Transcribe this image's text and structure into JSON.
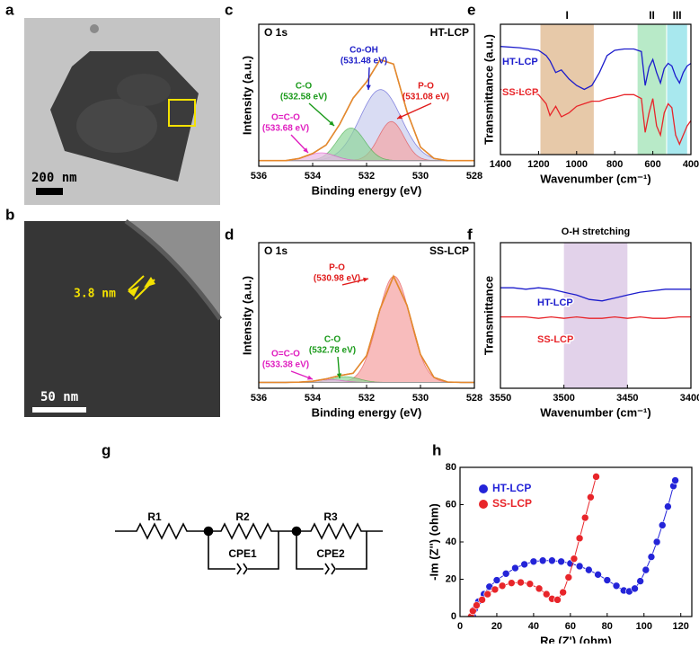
{
  "panel_labels": [
    "a",
    "b",
    "c",
    "d",
    "e",
    "f",
    "g",
    "h"
  ],
  "images": [
    {
      "scale_bar": "200 nm"
    },
    {
      "scale_bar": "50 nm",
      "annotation": "3.8 nm"
    }
  ],
  "circuit": {
    "labels": [
      "R1",
      "R2",
      "R3",
      "CPE1",
      "CPE2"
    ]
  },
  "chart_data": [
    {
      "type": "xps",
      "title": "O 1s",
      "sample": "HT-LCP",
      "xlabel": "Binding energy (eV)",
      "ylabel": "Intensity (a.u.)",
      "xlim": [
        536,
        528
      ],
      "xticks": [
        536,
        534,
        532,
        530,
        528
      ],
      "ylim": [
        0,
        100
      ],
      "baseline": 4,
      "x": [
        536,
        535.5,
        535,
        534.5,
        534,
        533.5,
        533,
        532.5,
        532,
        531.5,
        531,
        530.5,
        530,
        529.5,
        529,
        528.5,
        528
      ],
      "envelope": {
        "color": "#e6892c",
        "values": [
          4,
          4,
          4,
          5.5,
          9,
          15,
          29.5,
          48,
          59.5,
          75,
          72,
          38.5,
          13.5,
          5.5,
          4,
          4,
          4
        ]
      },
      "peaks": [
        {
          "name": "Co-OH",
          "label": "(531.48 eV)",
          "center": 531.48,
          "height": 50,
          "sigma": 0.76,
          "color": "#c9cdee",
          "label_color": "#2020c8"
        },
        {
          "name": "P-O",
          "label": "(531.08 eV)",
          "center": 531.08,
          "height": 27.5,
          "sigma": 0.47,
          "color": "#f3a5a5",
          "label_color": "#e01b1b"
        },
        {
          "name": "C-O",
          "label": "(532.58 eV)",
          "center": 532.58,
          "height": 23,
          "sigma": 0.51,
          "color": "#8fd69a",
          "label_color": "#1a9a1a"
        },
        {
          "name": "O=C-O",
          "label": "(533.68 eV)",
          "center": 533.68,
          "height": 5.5,
          "sigma": 0.51,
          "color": "#e9b6e6",
          "label_color": "#e020c0"
        }
      ]
    },
    {
      "type": "xps",
      "title": "O 1s",
      "sample": "SS-LCP",
      "xlabel": "Binding energy (eV)",
      "ylabel": "Intensity (a.u.)",
      "xlim": [
        536,
        528
      ],
      "xticks": [
        536,
        534,
        532,
        530,
        528
      ],
      "ylim": [
        0,
        100
      ],
      "baseline": 4,
      "x": [
        536,
        535.5,
        535,
        534.5,
        534,
        533.5,
        533,
        532.5,
        532,
        531.5,
        531,
        530.5,
        530,
        529.5,
        529,
        528.5,
        528
      ],
      "envelope": {
        "color": "#e6892c",
        "values": [
          4,
          4,
          4,
          4.2,
          4.8,
          6.4,
          8.7,
          10.3,
          22.4,
          54.4,
          77,
          57,
          23.2,
          7.5,
          4.3,
          4,
          4
        ]
      },
      "peaks": [
        {
          "name": "P-O",
          "label": "(530.98 eV)",
          "center": 530.98,
          "height": 73,
          "sigma": 0.6,
          "color": "#f5a0a0",
          "label_color": "#e01b1b"
        },
        {
          "name": "C-O",
          "label": "(532.78 eV)",
          "center": 532.78,
          "height": 4,
          "sigma": 0.5,
          "color": "#8fd69a",
          "label_color": "#1a9a1a"
        },
        {
          "name": "O=C-O",
          "label": "(533.38 eV)",
          "center": 533.38,
          "height": 2,
          "sigma": 0.5,
          "color": "#e9b6e6",
          "label_color": "#e020c0"
        }
      ]
    },
    {
      "type": "ftir",
      "xlabel": "Wavenumber (cm⁻¹)",
      "ylabel": "Transmittance (a.u.)",
      "xlim": [
        1400,
        400
      ],
      "xticks": [
        1400,
        1200,
        1000,
        800,
        600,
        400
      ],
      "ylim": [
        0,
        100
      ],
      "bands": [
        {
          "label": "I",
          "range": [
            1190,
            910
          ],
          "color": "#e7c9a9"
        },
        {
          "label": "II",
          "range": [
            680,
            530
          ],
          "color": "#b8eac8"
        },
        {
          "label": "III",
          "range": [
            525,
            420
          ],
          "color": "#a8e8ee"
        }
      ],
      "x": [
        1400,
        1300,
        1250,
        1200,
        1160,
        1140,
        1110,
        1080,
        1040,
        1000,
        960,
        920,
        880,
        840,
        800,
        750,
        700,
        660,
        640,
        620,
        600,
        580,
        560,
        540,
        520,
        500,
        480,
        460,
        440,
        420,
        400
      ],
      "series": [
        {
          "name": "HT-LCP",
          "color": "#1c1ccc",
          "values": [
            83,
            82,
            81,
            80,
            76,
            72,
            63,
            65,
            58,
            53,
            50,
            53,
            63,
            76,
            80,
            81,
            81,
            79,
            53,
            67,
            73,
            63,
            55,
            66,
            70,
            68,
            60,
            55,
            63,
            68,
            70
          ]
        },
        {
          "name": "SS-LCP",
          "color": "#e8252a",
          "values": [
            50,
            49,
            48,
            46,
            39,
            30,
            37,
            29,
            32,
            37,
            39,
            41,
            41,
            43,
            44,
            46,
            46,
            43,
            17,
            32,
            43,
            22,
            15,
            32,
            39,
            36,
            15,
            8,
            15,
            22,
            26
          ]
        }
      ]
    },
    {
      "type": "ftir",
      "title": "O-H stretching",
      "xlabel": "Wavenumber (cm⁻¹)",
      "ylabel": "Transmittance",
      "xlim": [
        3550,
        3400
      ],
      "xticks": [
        3550,
        3500,
        3450,
        3400
      ],
      "ylim": [
        0,
        100
      ],
      "bands": [
        {
          "range": [
            3500,
            3450
          ],
          "color": "#e2d2ea"
        }
      ],
      "x": [
        3550,
        3540,
        3530,
        3520,
        3510,
        3500,
        3490,
        3480,
        3470,
        3460,
        3450,
        3440,
        3430,
        3420,
        3410,
        3400
      ],
      "series": [
        {
          "name": "HT-LCP",
          "color": "#1c1ccc",
          "values": [
            69,
            69,
            68,
            69,
            68,
            66,
            64,
            61,
            60,
            62,
            64,
            66,
            67,
            68,
            68,
            68
          ]
        },
        {
          "name": "SS-LCP",
          "color": "#e8252a",
          "values": [
            49,
            49,
            49,
            48,
            49,
            48,
            49,
            48,
            48,
            49,
            48,
            49,
            48,
            48,
            49,
            49
          ]
        }
      ]
    },
    {
      "type": "scatter",
      "xlabel": "Re (Z') (ohm)",
      "ylabel": "-Im (Z'') (ohm)",
      "xlim": [
        0,
        126
      ],
      "xticks": [
        0,
        20,
        40,
        60,
        80,
        100,
        120
      ],
      "ylim": [
        0,
        80
      ],
      "yticks": [
        0,
        20,
        40,
        60,
        80
      ],
      "legend": "top-left",
      "series": [
        {
          "name": "HT-LCP",
          "color": "#2424d8",
          "x": [
            7,
            8,
            10,
            13,
            16,
            20,
            25,
            30,
            35,
            40,
            45,
            50,
            55,
            60,
            65,
            70,
            75,
            80,
            85,
            89,
            92,
            95,
            98,
            101,
            104,
            107,
            110,
            113,
            116,
            117
          ],
          "values": [
            0,
            4,
            8,
            12,
            16,
            19.5,
            23,
            26,
            28,
            29.5,
            30,
            30,
            29.5,
            28.5,
            27,
            25,
            22.5,
            19.5,
            16.5,
            14,
            13.5,
            15,
            19,
            25,
            32,
            40,
            49,
            59,
            70,
            73
          ]
        },
        {
          "name": "SS-LCP",
          "color": "#e8252a",
          "x": [
            6,
            7,
            9,
            12,
            15,
            19,
            23,
            28,
            33,
            38,
            43,
            47,
            50,
            53,
            56,
            59,
            62,
            65,
            68,
            71,
            74
          ],
          "values": [
            0,
            3,
            6,
            9,
            12,
            14.5,
            16.5,
            18,
            18.3,
            17.5,
            15,
            12,
            9.5,
            9,
            13,
            21,
            31,
            42,
            53,
            64,
            75
          ]
        }
      ]
    }
  ]
}
